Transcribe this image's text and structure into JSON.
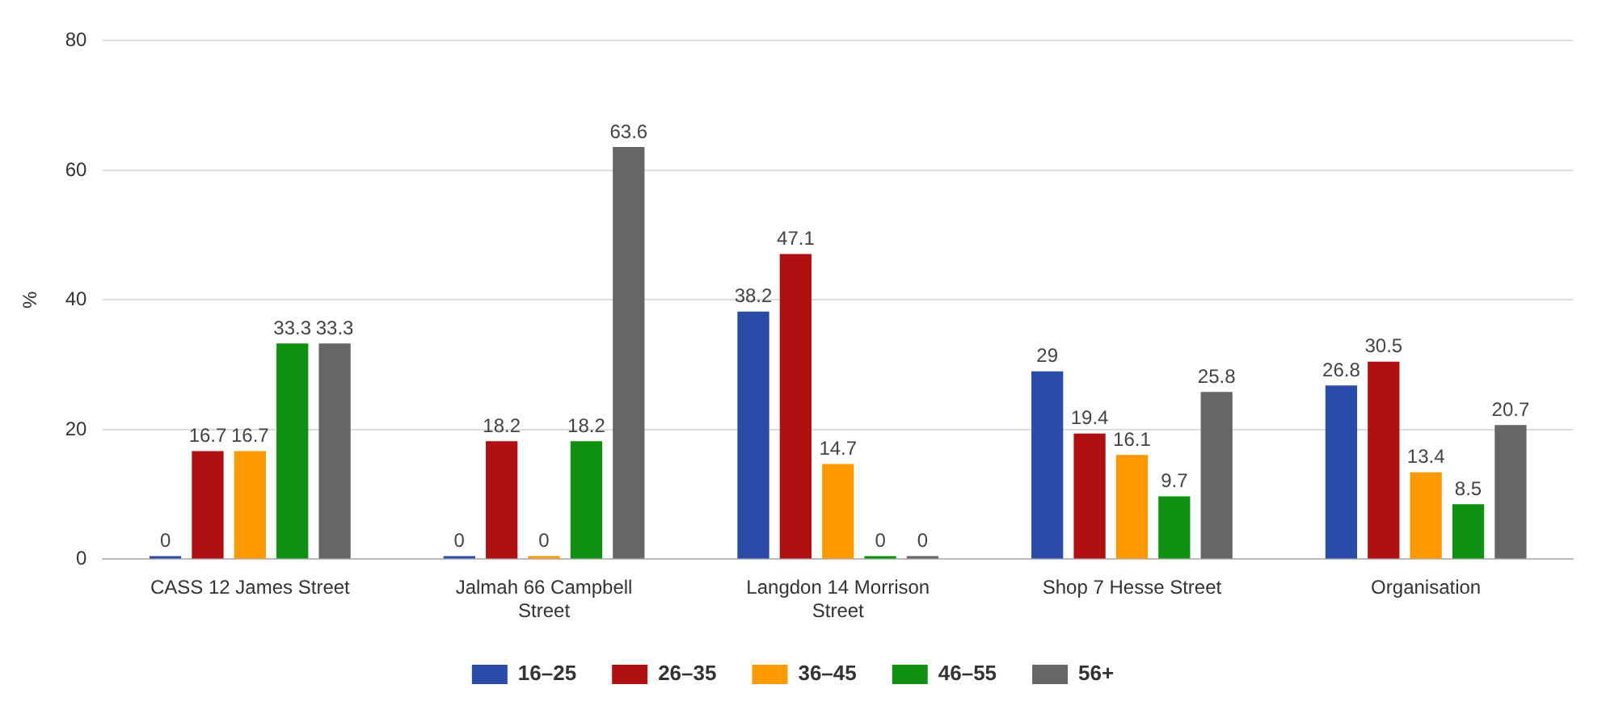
{
  "chart_data": {
    "type": "bar",
    "ylabel": "%",
    "categories": [
      "CASS 12 James Street",
      "Jalmah 66 Campbell Street",
      "Langdon 14 Morrison Street",
      "Shop 7 Hesse Street",
      "Organisation"
    ],
    "series": [
      {
        "name": "16–25",
        "color": "#2b4ba8",
        "values": [
          0,
          0,
          38.2,
          29,
          26.8
        ]
      },
      {
        "name": "26–35",
        "color": "#b01010",
        "values": [
          16.7,
          18.2,
          47.1,
          19.4,
          30.5
        ]
      },
      {
        "name": "36–45",
        "color": "#ff9900",
        "values": [
          16.7,
          0,
          14.7,
          16.1,
          13.4
        ]
      },
      {
        "name": "46–55",
        "color": "#109010",
        "values": [
          33.3,
          18.2,
          0,
          9.7,
          8.5
        ]
      },
      {
        "name": "56+",
        "color": "#666666",
        "values": [
          33.3,
          63.6,
          0,
          25.8,
          20.7
        ]
      }
    ],
    "ylim": [
      0,
      80
    ],
    "yticks": [
      0,
      20,
      40,
      60,
      80
    ],
    "grid": "y",
    "legend": "bottom",
    "data_labels": true
  }
}
